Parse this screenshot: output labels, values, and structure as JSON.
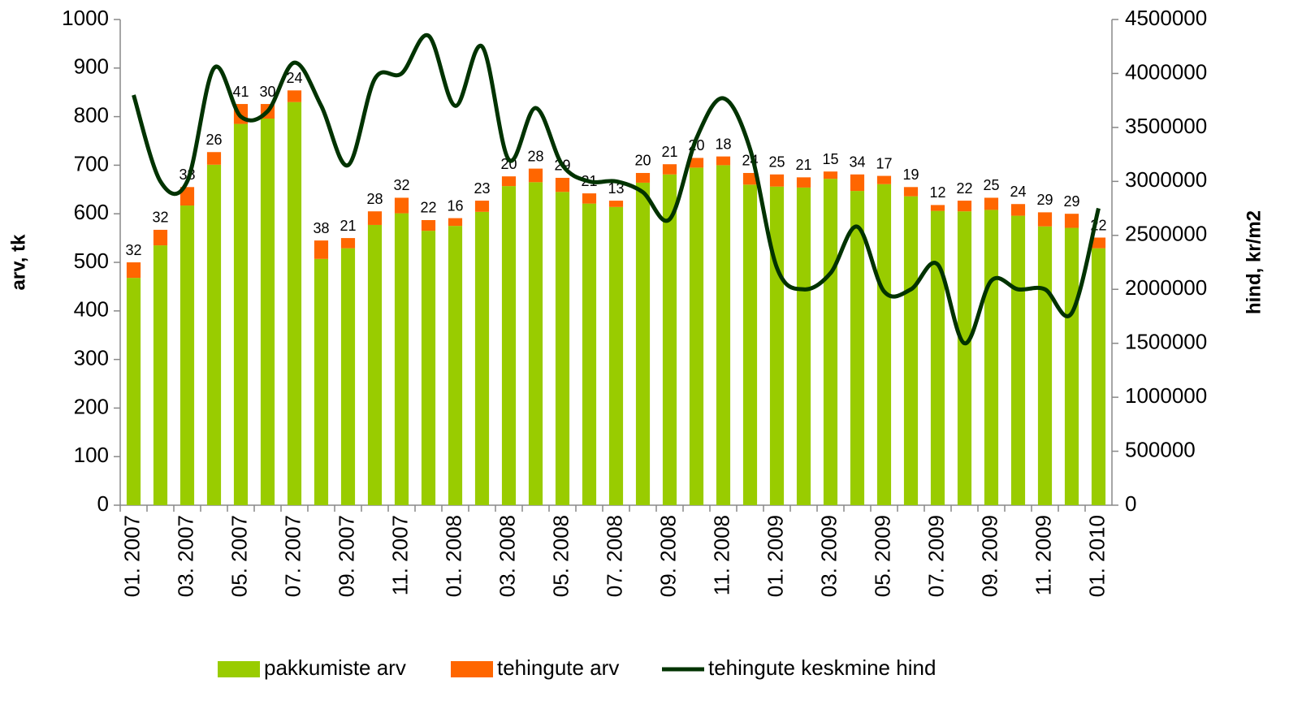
{
  "chart_data": {
    "type": "bar",
    "stacked": true,
    "categories": [
      "01. 2007",
      null,
      "03. 2007",
      null,
      "05. 2007",
      null,
      "07. 2007",
      null,
      "09. 2007",
      null,
      "11. 2007",
      null,
      "01. 2008",
      null,
      "03. 2008",
      null,
      "05. 2008",
      null,
      "07. 2008",
      null,
      "09. 2008",
      null,
      "11. 2008",
      null,
      "01. 2009",
      null,
      "03. 2009",
      null,
      "05. 2009",
      null,
      "07. 2009",
      null,
      "09. 2009",
      null,
      "11. 2009",
      null,
      "01. 2010"
    ],
    "series": [
      {
        "name": "pakkumiste arv",
        "type": "bar",
        "color": "#99cc00",
        "values": [
          468,
          535,
          617,
          701,
          785,
          796,
          830,
          507,
          529,
          577,
          601,
          565,
          575,
          604,
          657,
          665,
          645,
          621,
          614,
          664,
          681,
          695,
          700,
          660,
          656,
          654,
          672,
          647,
          661,
          636,
          606,
          605,
          608,
          596,
          574,
          571,
          529
        ]
      },
      {
        "name": "tehingute arv",
        "type": "bar",
        "color": "#ff6600",
        "show_value_labels": true,
        "values": [
          32,
          32,
          38,
          26,
          41,
          30,
          24,
          38,
          21,
          28,
          32,
          22,
          16,
          23,
          20,
          28,
          29,
          21,
          13,
          20,
          21,
          20,
          18,
          24,
          25,
          21,
          15,
          34,
          17,
          19,
          12,
          22,
          25,
          24,
          29,
          29,
          22
        ]
      },
      {
        "name": "tehingute keskmine hind",
        "type": "line",
        "axis": "y2",
        "color": "#003300",
        "values": [
          3800000,
          3000000,
          3000000,
          4050000,
          3600000,
          3650000,
          4100000,
          3700000,
          3150000,
          3950000,
          4000000,
          4350000,
          3700000,
          4250000,
          3200000,
          3680000,
          3150000,
          3000000,
          3000000,
          2900000,
          2650000,
          3400000,
          3770000,
          3300000,
          2200000,
          2000000,
          2150000,
          2580000,
          1980000,
          2000000,
          2230000,
          1500000,
          2080000,
          2000000,
          2000000,
          1780000,
          2750000
        ]
      }
    ],
    "ylabel": "arv, tk",
    "y2label": "hind, kr/m2",
    "ylim": [
      0,
      1000
    ],
    "yticks": [
      0,
      100,
      200,
      300,
      400,
      500,
      600,
      700,
      800,
      900,
      1000
    ],
    "y2lim": [
      0,
      4500000
    ],
    "y2ticks": [
      0,
      500000,
      1000000,
      1500000,
      2000000,
      2500000,
      3000000,
      3500000,
      4000000,
      4500000
    ],
    "grid": false,
    "legend": "bottom"
  }
}
